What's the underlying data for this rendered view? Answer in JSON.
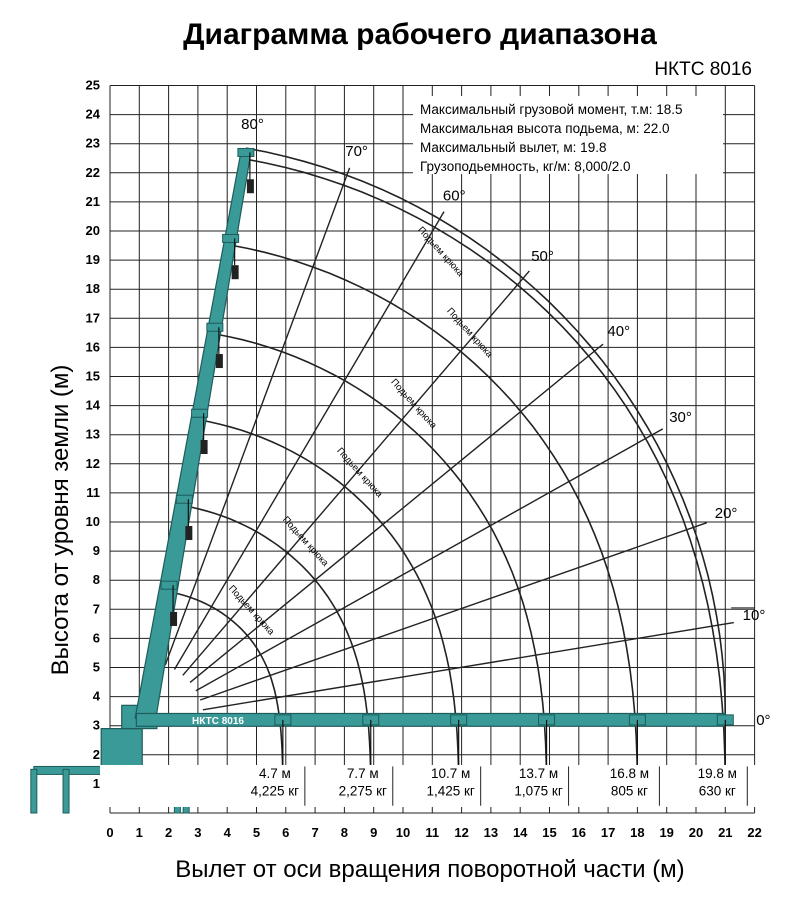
{
  "title": "Диаграмма рабочего диапазона",
  "model": "НКТС 8016",
  "boom_label": "НКТС 8016",
  "colors": {
    "boom": "#3a9a98",
    "boom_edge": "#1d5c5a",
    "grid": "#222222",
    "background": "#ffffff"
  },
  "info": [
    "Максимальный грузовой момент, т.м: 18.5",
    "Максимальная высота подьема, м: 22.0",
    "Максимальный вылет, м: 19.8",
    "Грузоподьемность, кг/м: 8,000/2.0"
  ],
  "chart_data": {
    "type": "line",
    "title": "Диаграмма рабочего диапазона",
    "subtitle": "НКТС 8016",
    "xlabel": "Вылет от оси вращения поворотной части (м)",
    "ylabel": "Высота от уровня земли (м)",
    "xlim": [
      0,
      22
    ],
    "ylim": [
      0,
      25
    ],
    "x_ticks": [
      0,
      1,
      2,
      3,
      4,
      5,
      6,
      7,
      8,
      9,
      10,
      11,
      12,
      13,
      14,
      15,
      16,
      17,
      18,
      19,
      20,
      21,
      22
    ],
    "y_ticks": [
      1,
      2,
      3,
      4,
      5,
      6,
      7,
      8,
      9,
      10,
      11,
      12,
      13,
      14,
      15,
      16,
      17,
      18,
      19,
      20,
      21,
      22,
      23,
      24,
      25
    ],
    "grid": true,
    "pivot": [
      1.2,
      3.2
    ],
    "hook_drop": 2.3,
    "boom_lengths": [
      4.7,
      7.7,
      10.7,
      13.7,
      16.8,
      19.8
    ],
    "boom_angles": [
      0,
      10,
      20,
      30,
      40,
      50,
      60,
      70,
      80
    ],
    "angle_labels": [
      "0°",
      "10°",
      "20°",
      "30°",
      "40°",
      "50°",
      "60°",
      "70°",
      "80°"
    ],
    "hook_path_label": "Подьем крюка",
    "capacities": [
      {
        "reach": "4.7 м",
        "load": "4,225 кг"
      },
      {
        "reach": "7.7 м",
        "load": "2,275 кг"
      },
      {
        "reach": "10.7 м",
        "load": "1,425 кг"
      },
      {
        "reach": "13.7 м",
        "load": "1,075 кг"
      },
      {
        "reach": "16.8 м",
        "load": "805 кг"
      },
      {
        "reach": "19.8 м",
        "load": "630 кг"
      }
    ]
  }
}
